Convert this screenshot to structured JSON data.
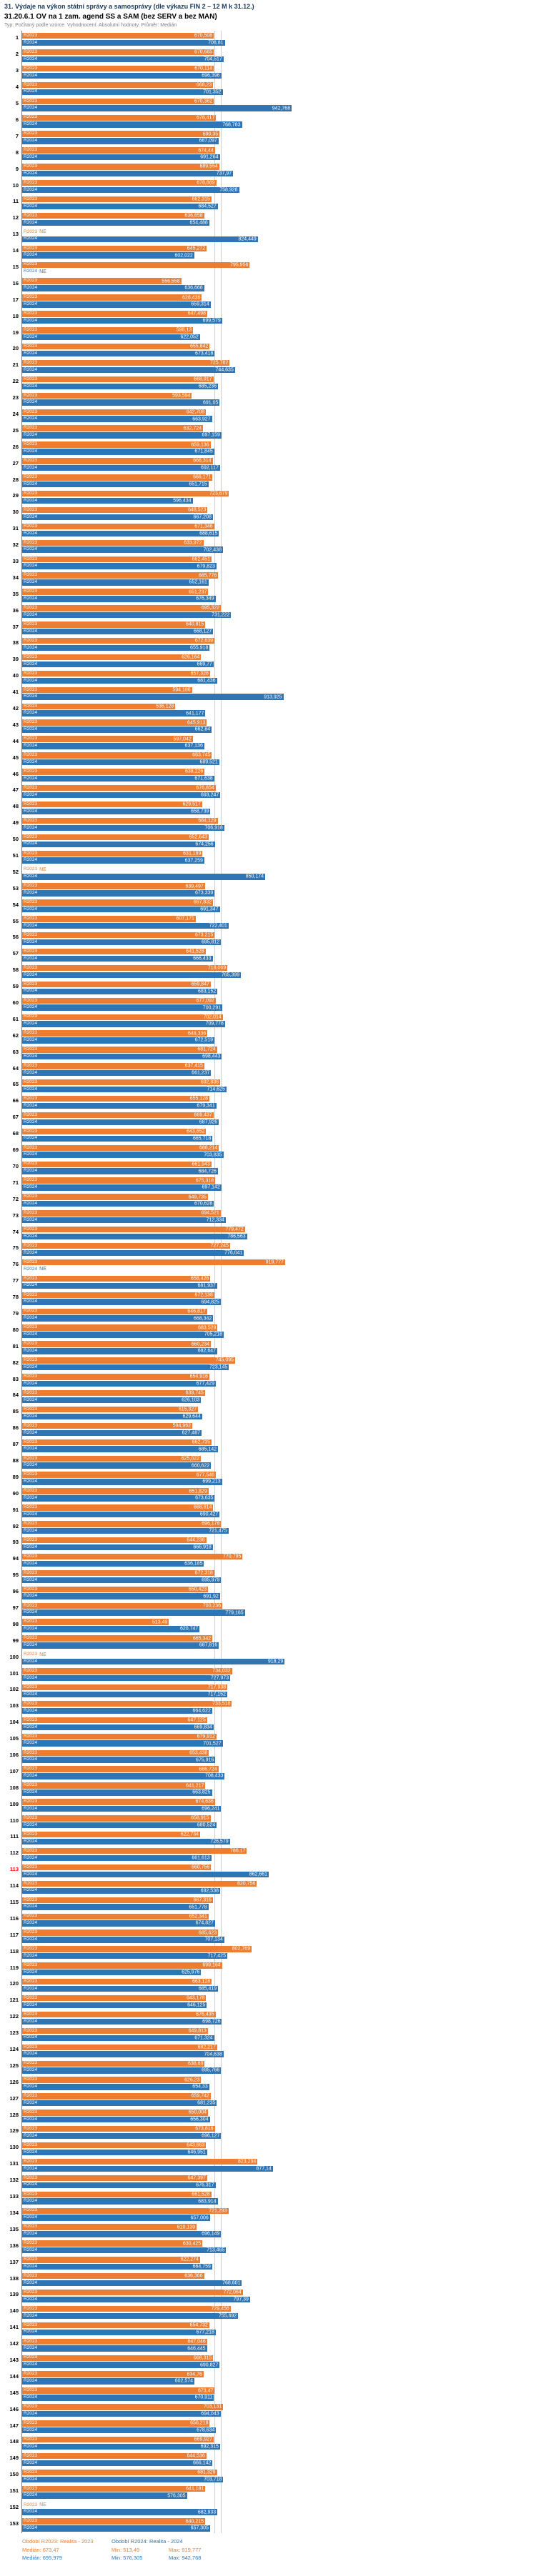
{
  "header": {
    "title": "31. Výdaje na výkon státní správy a samosprávy (dle výkazu FIN 2 – 12 M k 31.12.)",
    "subtitle": "31.20.6.1 OV na 1 zam. agend SS a SAM (bez SERV a bez MAN)",
    "meta": "Typ: Počítaný podle vzorce. Vyhodnocení: Absolutní hodnoty. Průměr: Medián"
  },
  "colors": {
    "r2023": "#ED7D31",
    "r2024": "#2E75B6",
    "highlight_row_number": "#FF0000",
    "median_line": "#CFCFCF"
  },
  "legend": {
    "s2023": "Období R2023: Realita - 2023",
    "s2024": "Období R2024: Realita - 2024"
  },
  "stats": {
    "s2023": {
      "median": "Medián: 673,47",
      "min": "Min: 513,49",
      "max": "Max: 919,777"
    },
    "s2024": {
      "median": "Medián: 695,979",
      "min": "Min: 576,305",
      "max": "Max: 942,768"
    }
  },
  "chart_data": {
    "type": "bar",
    "orientation": "horizontal",
    "title": "31.20.6.1 OV na 1 zam. agend SS a SAM (bez SERV a bez MAN)",
    "series_labels": [
      "R2023",
      "R2024"
    ],
    "axis": {
      "min": 0,
      "max": 1000
    },
    "grid": "vertical-median-lines",
    "legend_position": "bottom",
    "highlighted_row": 113,
    "medians": {
      "r2023": 673.47,
      "r2024": 695.979
    },
    "no_data_marker": "NE",
    "rows": [
      {
        "n": 1,
        "r2023": "670,508",
        "r2024": "708,81"
      },
      {
        "n": 2,
        "r2023": "670,685",
        "r2024": "704,517"
      },
      {
        "n": 3,
        "r2023": "670,114",
        "r2024": "696,396"
      },
      {
        "n": 4,
        "r2023": "668,23",
        "r2024": "701,352"
      },
      {
        "n": 5,
        "r2023": "670,362",
        "r2024": "942,768"
      },
      {
        "n": 6,
        "r2023": "678,417",
        "r2024": "768,783"
      },
      {
        "n": 7,
        "r2023": "690,35",
        "r2024": "687,097"
      },
      {
        "n": 8,
        "r2023": "674,44",
        "r2024": "691,264"
      },
      {
        "n": 9,
        "r2023": "689,554",
        "r2024": "737,97"
      },
      {
        "n": 10,
        "r2023": "678,889",
        "r2024": "758,928"
      },
      {
        "n": 11,
        "r2023": "662,315",
        "r2024": "684,527"
      },
      {
        "n": 12,
        "r2023": "636,658",
        "r2024": "654,488"
      },
      {
        "n": 13,
        "r2023": "NE",
        "r2024": "824,449"
      },
      {
        "n": 14,
        "r2023": "645,272",
        "r2024": "602,022"
      },
      {
        "n": 15,
        "r2023": "795,956",
        "r2024": "NE"
      },
      {
        "n": 16,
        "r2023": "556,558",
        "r2024": "636,668"
      },
      {
        "n": 17,
        "r2023": "628,436",
        "r2024": "659,314"
      },
      {
        "n": 18,
        "r2023": "647,498",
        "r2024": "699,579"
      },
      {
        "n": 19,
        "r2023": "598,13",
        "r2024": "622,052"
      },
      {
        "n": 20,
        "r2023": "655,842",
        "r2024": "673,418"
      },
      {
        "n": 21,
        "r2023": "725,782",
        "r2024": "744,635"
      },
      {
        "n": 22,
        "r2023": "668,917",
        "r2024": "685,236"
      },
      {
        "n": 23,
        "r2023": "593,594",
        "r2024": "691,05"
      },
      {
        "n": 24,
        "r2023": "642,708",
        "r2024": "663,927"
      },
      {
        "n": 25,
        "r2023": "632,724",
        "r2024": "697,159"
      },
      {
        "n": 26,
        "r2023": "659,136",
        "r2024": "671,845"
      },
      {
        "n": 27,
        "r2023": "666,314",
        "r2024": "692,117"
      },
      {
        "n": 28,
        "r2023": "666,171",
        "r2024": "651,715"
      },
      {
        "n": 29,
        "r2023": "723,679",
        "r2024": "596,434"
      },
      {
        "n": 30,
        "r2023": "648,523",
        "r2024": "667,208"
      },
      {
        "n": 31,
        "r2023": "671,346",
        "r2024": "688,615"
      },
      {
        "n": 32,
        "r2023": "633,972",
        "r2024": "702,438"
      },
      {
        "n": 33,
        "r2023": "662,451",
        "r2024": "679,823"
      },
      {
        "n": 34,
        "r2023": "685,776",
        "r2024": "652,161"
      },
      {
        "n": 35,
        "r2023": "651,237",
        "r2024": "676,349"
      },
      {
        "n": 36,
        "r2023": "695,322",
        "r2024": "731,222"
      },
      {
        "n": 37,
        "r2023": "640,815",
        "r2024": "668,127"
      },
      {
        "n": 38,
        "r2023": "672,639",
        "r2024": "655,918"
      },
      {
        "n": 39,
        "r2023": "626,164",
        "r2024": "669,77"
      },
      {
        "n": 40,
        "r2023": "657,328",
        "r2024": "681,436"
      },
      {
        "n": 41,
        "r2023": "594,186",
        "r2024": "913,925"
      },
      {
        "n": 42,
        "r2023": "536,128",
        "r2024": "641,177"
      },
      {
        "n": 43,
        "r2023": "645,913",
        "r2024": "662,84"
      },
      {
        "n": 44,
        "r2023": "597,042",
        "r2024": "637,136"
      },
      {
        "n": 45,
        "r2023": "663,745",
        "r2024": "689,521"
      },
      {
        "n": 46,
        "r2023": "638,226",
        "r2024": "671,638"
      },
      {
        "n": 47,
        "r2023": "676,854",
        "r2024": "693,247"
      },
      {
        "n": 48,
        "r2023": "629,517",
        "r2024": "658,739"
      },
      {
        "n": 49,
        "r2023": "684,129",
        "r2024": "706,918"
      },
      {
        "n": 50,
        "r2023": "652,643",
        "r2024": "674,256"
      },
      {
        "n": 51,
        "r2023": "631,189",
        "r2024": "637,259"
      },
      {
        "n": 52,
        "r2023": "NE",
        "r2024": "850,174"
      },
      {
        "n": 53,
        "r2023": "639,497",
        "r2024": "673,339"
      },
      {
        "n": 54,
        "r2023": "667,832",
        "r2024": "691,347"
      },
      {
        "n": 55,
        "r2023": "607,171",
        "r2024": "722,401"
      },
      {
        "n": 56,
        "r2023": "673,215",
        "r2024": "695,812"
      },
      {
        "n": 57,
        "r2023": "641,528",
        "r2024": "666,433"
      },
      {
        "n": 58,
        "r2023": "718,069",
        "r2024": "765,399"
      },
      {
        "n": 59,
        "r2023": "659,847",
        "r2024": "683,152"
      },
      {
        "n": 60,
        "r2023": "677,092",
        "r2024": "700,291"
      },
      {
        "n": 61,
        "r2023": "702,014",
        "r2024": "709,778"
      },
      {
        "n": 62,
        "r2023": "648,336",
        "r2024": "672,519"
      },
      {
        "n": 63,
        "r2023": "681,724",
        "r2024": "698,443"
      },
      {
        "n": 64,
        "r2023": "637,415",
        "r2024": "661,237"
      },
      {
        "n": 65,
        "r2023": "692,836",
        "r2024": "714,625"
      },
      {
        "n": 66,
        "r2023": "655,128",
        "r2024": "679,341"
      },
      {
        "n": 67,
        "r2023": "669,437",
        "r2024": "687,926"
      },
      {
        "n": 68,
        "r2023": "643,652",
        "r2024": "665,718"
      },
      {
        "n": 69,
        "r2023": "688,214",
        "r2024": "703,835"
      },
      {
        "n": 70,
        "r2023": "661,943",
        "r2024": "684,726"
      },
      {
        "n": 71,
        "r2023": "675,318",
        "r2024": "697,142"
      },
      {
        "n": 72,
        "r2023": "649,735",
        "r2024": "670,628"
      },
      {
        "n": 73,
        "r2023": "694,521",
        "r2024": "712,334"
      },
      {
        "n": 74,
        "r2023": "779,472",
        "r2024": "786,563"
      },
      {
        "n": 75,
        "r2023": "727,245",
        "r2024": "776,041"
      },
      {
        "n": 76,
        "r2023": "919,777",
        "r2024": "NE"
      },
      {
        "n": 77,
        "r2023": "658,426",
        "r2024": "681,937"
      },
      {
        "n": 78,
        "r2023": "672,138",
        "r2024": "694,825"
      },
      {
        "n": 79,
        "r2023": "646,817",
        "r2024": "668,342"
      },
      {
        "n": 80,
        "r2023": "683,529",
        "r2024": "705,218"
      },
      {
        "n": 81,
        "r2023": "660,234",
        "r2024": "682,647"
      },
      {
        "n": 82,
        "r2023": "745,095",
        "r2024": "723,145"
      },
      {
        "n": 83,
        "r2023": "654,918",
        "r2024": "677,429"
      },
      {
        "n": 84,
        "r2023": "639,745",
        "r2024": "626,103"
      },
      {
        "n": 85,
        "r2023": "615,327",
        "r2024": "629,644"
      },
      {
        "n": 86,
        "r2023": "594,962",
        "r2024": "627,487"
      },
      {
        "n": 87,
        "r2023": "662,735",
        "r2024": "685,142"
      },
      {
        "n": 88,
        "r2023": "625,022",
        "r2024": "660,622"
      },
      {
        "n": 89,
        "r2023": "677,546",
        "r2024": "699,213"
      },
      {
        "n": 90,
        "r2023": "651,829",
        "r2024": "673,635"
      },
      {
        "n": 91,
        "r2023": "668,614",
        "r2024": "690,427"
      },
      {
        "n": 92,
        "r2023": "696,178",
        "r2024": "721,475"
      },
      {
        "n": 93,
        "r2023": "644,236",
        "r2024": "666,918"
      },
      {
        "n": 94,
        "r2023": "770,795",
        "r2024": "636,185"
      },
      {
        "n": 95,
        "r2023": "672,318",
        "r2024": "695,979"
      },
      {
        "n": 96,
        "r2023": "650,423",
        "r2024": "691,92"
      },
      {
        "n": 97,
        "r2023": "700,236",
        "r2024": "779,165"
      },
      {
        "n": 98,
        "r2023": "513,49",
        "r2024": "620,747"
      },
      {
        "n": 99,
        "r2023": "665,342",
        "r2024": "687,816"
      },
      {
        "n": 100,
        "r2023": "NE",
        "r2024": "918,29"
      },
      {
        "n": 101,
        "r2023": "734,032",
        "r2024": "727,973"
      },
      {
        "n": 102,
        "r2023": "717,938",
        "r2024": "717,152"
      },
      {
        "n": 103,
        "r2023": "733,518",
        "r2024": "664,622"
      },
      {
        "n": 104,
        "r2023": "647,125",
        "r2024": "669,834"
      },
      {
        "n": 105,
        "r2023": "679,912",
        "r2024": "701,527"
      },
      {
        "n": 106,
        "r2023": "653,438",
        "r2024": "675,916"
      },
      {
        "n": 107,
        "r2023": "686,724",
        "r2024": "708,433"
      },
      {
        "n": 108,
        "r2023": "641,217",
        "r2024": "663,825"
      },
      {
        "n": 109,
        "r2023": "674,636",
        "r2024": "696,241"
      },
      {
        "n": 110,
        "r2023": "658,915",
        "r2024": "680,524"
      },
      {
        "n": 111,
        "r2023": "622,734",
        "r2024": "726,579"
      },
      {
        "n": 112,
        "r2023": "786,17",
        "r2024": "661,613"
      },
      {
        "n": 113,
        "r2023": "660,756",
        "r2024": "862,661"
      },
      {
        "n": 114,
        "r2023": "820,756",
        "r2024": "692,538"
      },
      {
        "n": 115,
        "r2023": "667,316",
        "r2024": "651,778"
      },
      {
        "n": 116,
        "r2023": "652,341",
        "r2024": "674,827"
      },
      {
        "n": 117,
        "r2023": "685,623",
        "r2024": "707,134"
      },
      {
        "n": 118,
        "r2023": "802,769",
        "r2024": "717,425"
      },
      {
        "n": 119,
        "r2023": "699,164",
        "r2024": "625,976"
      },
      {
        "n": 120,
        "r2023": "663,128",
        "r2024": "685,419"
      },
      {
        "n": 121,
        "r2023": "643,178",
        "r2024": "646,125"
      },
      {
        "n": 122,
        "r2023": "676,435",
        "r2024": "698,726"
      },
      {
        "n": 123,
        "r2023": "649,813",
        "r2024": "671,324"
      },
      {
        "n": 124,
        "r2023": "682,217",
        "r2024": "704,638"
      },
      {
        "n": 125,
        "r2023": "638,69",
        "r2024": "695,766"
      },
      {
        "n": 126,
        "r2023": "626,23",
        "r2024": "654,33"
      },
      {
        "n": 127,
        "r2023": "659,742",
        "r2024": "681,235"
      },
      {
        "n": 128,
        "r2023": "650,004",
        "r2024": "656,304"
      },
      {
        "n": 129,
        "r2023": "673,816",
        "r2024": "696,127"
      },
      {
        "n": 130,
        "r2023": "643,663",
        "r2024": "646,951"
      },
      {
        "n": 131,
        "r2023": "823,294",
        "r2024": "877,14"
      },
      {
        "n": 132,
        "r2023": "647,397",
        "r2024": "676,317"
      },
      {
        "n": 133,
        "r2023": "661,528",
        "r2024": "683,914"
      },
      {
        "n": 134,
        "r2023": "721,293",
        "r2024": "657,006"
      },
      {
        "n": 135,
        "r2023": "610,139",
        "r2024": "696,149"
      },
      {
        "n": 136,
        "r2023": "630,425",
        "r2024": "713,465"
      },
      {
        "n": 137,
        "r2023": "622,274",
        "r2024": "664,759"
      },
      {
        "n": 138,
        "r2023": "636,366",
        "r2024": "768,601"
      },
      {
        "n": 139,
        "r2023": "772,064",
        "r2024": "797,39"
      },
      {
        "n": 140,
        "r2023": "729,456",
        "r2024": "755,692"
      },
      {
        "n": 141,
        "r2023": "654,732",
        "r2024": "677,218"
      },
      {
        "n": 142,
        "r2023": "647,046",
        "r2024": "646,445"
      },
      {
        "n": 143,
        "r2023": "668,315",
        "r2024": "690,827"
      },
      {
        "n": 144,
        "r2023": "634,76",
        "r2024": "602,574"
      },
      {
        "n": 145,
        "r2023": "673,47",
        "r2024": "670,911"
      },
      {
        "n": 146,
        "r2023": "703,131",
        "r2024": "694,043"
      },
      {
        "n": 147,
        "r2023": "656,218",
        "r2024": "678,634"
      },
      {
        "n": 148,
        "r2023": "669,927",
        "r2024": "692,315"
      },
      {
        "n": 149,
        "r2023": "644,536",
        "r2024": "666,142"
      },
      {
        "n": 150,
        "r2023": "681,329",
        "r2024": "703,718"
      },
      {
        "n": 151,
        "r2023": "641,181",
        "r2024": "576,305"
      },
      {
        "n": 152,
        "r2023": "NE",
        "r2024": "682,933"
      },
      {
        "n": 153,
        "r2023": "640,215",
        "r2024": "657,305"
      }
    ]
  }
}
